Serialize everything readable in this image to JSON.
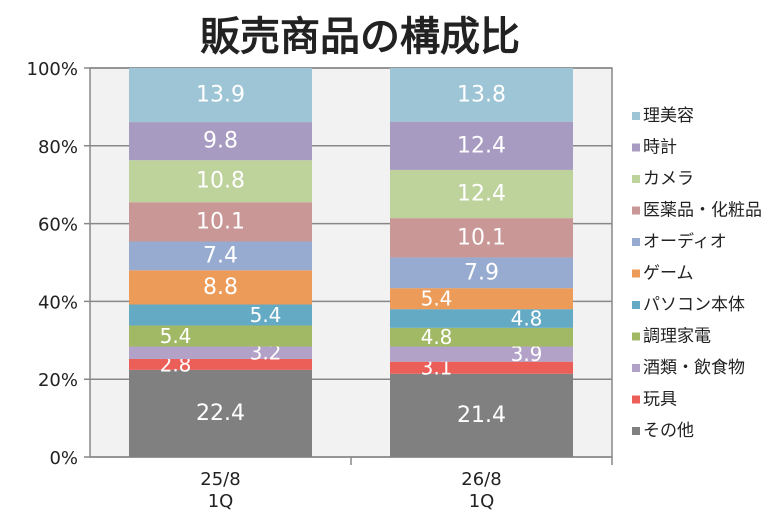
{
  "chart_data": {
    "type": "bar",
    "stacked": true,
    "title": "販売商品の構成比",
    "categories": [
      [
        "25/8",
        "1Q"
      ],
      [
        "26/8",
        "1Q"
      ]
    ],
    "ylim": [
      0,
      100
    ],
    "yticks": [
      "0%",
      "20%",
      "40%",
      "60%",
      "80%",
      "100%"
    ],
    "grid": true,
    "legend_position": "right",
    "series": [
      {
        "name": "その他",
        "color": "#808080",
        "values": [
          22.4,
          21.4
        ]
      },
      {
        "name": "玩具",
        "color": "#ec5f58",
        "values": [
          2.8,
          3.1
        ]
      },
      {
        "name": "酒類・飲食物",
        "color": "#b3a2c8",
        "values": [
          3.2,
          3.9
        ]
      },
      {
        "name": "調理家電",
        "color": "#a1b965",
        "values": [
          5.4,
          4.8
        ]
      },
      {
        "name": "パソコン本体",
        "color": "#64aac4",
        "values": [
          5.4,
          4.8
        ]
      },
      {
        "name": "ゲーム",
        "color": "#ec9b58",
        "values": [
          8.8,
          5.4
        ]
      },
      {
        "name": "オーディオ",
        "color": "#97aad0",
        "values": [
          7.4,
          7.9
        ]
      },
      {
        "name": "医薬品・化粧品",
        "color": "#c99796",
        "values": [
          10.1,
          10.1
        ]
      },
      {
        "name": "カメラ",
        "color": "#bed29c",
        "values": [
          10.8,
          12.4
        ]
      },
      {
        "name": "時計",
        "color": "#a79bc1",
        "values": [
          9.8,
          12.4
        ]
      },
      {
        "name": "理美容",
        "color": "#9dc5d6",
        "values": [
          13.9,
          13.8
        ]
      }
    ]
  }
}
